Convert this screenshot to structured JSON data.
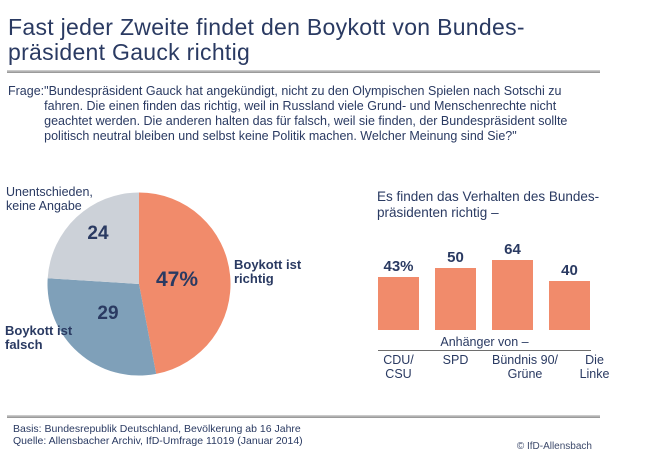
{
  "title": {
    "text": "Fast jeder Zweite findet den Boykott von Bundes-\npräsident Gauck richtig"
  },
  "question": {
    "label": "Frage:",
    "text": "\"Bundespräsident Gauck hat angekündigt, nicht zu den Olympischen Spielen nach Sotschi zu\nfahren. Die einen finden das richtig, weil in Russland viele Grund- und Menschenrechte nicht\ngeachtet werden. Die anderen halten das für falsch, weil sie finden, der Bundespräsident sollte\npolitisch neutral bleiben und selbst keine Politik machen. Welcher Meinung sind Sie?\""
  },
  "chart_data": [
    {
      "type": "pie",
      "unit": "percent",
      "start_angle_deg": 0,
      "direction": "clockwise",
      "slices": [
        {
          "label": "Boykott ist richtig",
          "value": 47,
          "display": "47%",
          "color": "#F18B6B"
        },
        {
          "label": "Boykott ist falsch",
          "value": 29,
          "display": "29",
          "color": "#7FA0B9"
        },
        {
          "label": "Unentschieden, keine Angabe",
          "value": 24,
          "display": "24",
          "color": "#CCD1D8"
        }
      ]
    },
    {
      "type": "bar",
      "title": "Es finden das Verhalten des Bundes-\npräsidenten richtig –",
      "categories": [
        "CDU/\nCSU",
        "SPD",
        "Bündnis 90/\nGrüne",
        "Die\nLinke"
      ],
      "values": [
        43,
        50,
        64,
        40
      ],
      "value_labels": [
        "43%",
        "50",
        "64",
        "40"
      ],
      "group_axis_label": "Anhänger von –",
      "bar_color": "#F18B6B",
      "legend": "none",
      "grid": false
    }
  ],
  "footer": {
    "basis": "Basis: Bundesrepublik Deutschland, Bevölkerung ab 16 Jahre",
    "quelle": "Quelle: Allensbacher Archiv, IfD-Umfrage 11019 (Januar 2014)",
    "copyright": "© IfD-Allensbach"
  },
  "colors": {
    "text_navy": "#2A3A62",
    "accent_orange": "#F18B6B",
    "accent_blue": "#7FA0B9",
    "accent_gray": "#CCD1D8"
  }
}
